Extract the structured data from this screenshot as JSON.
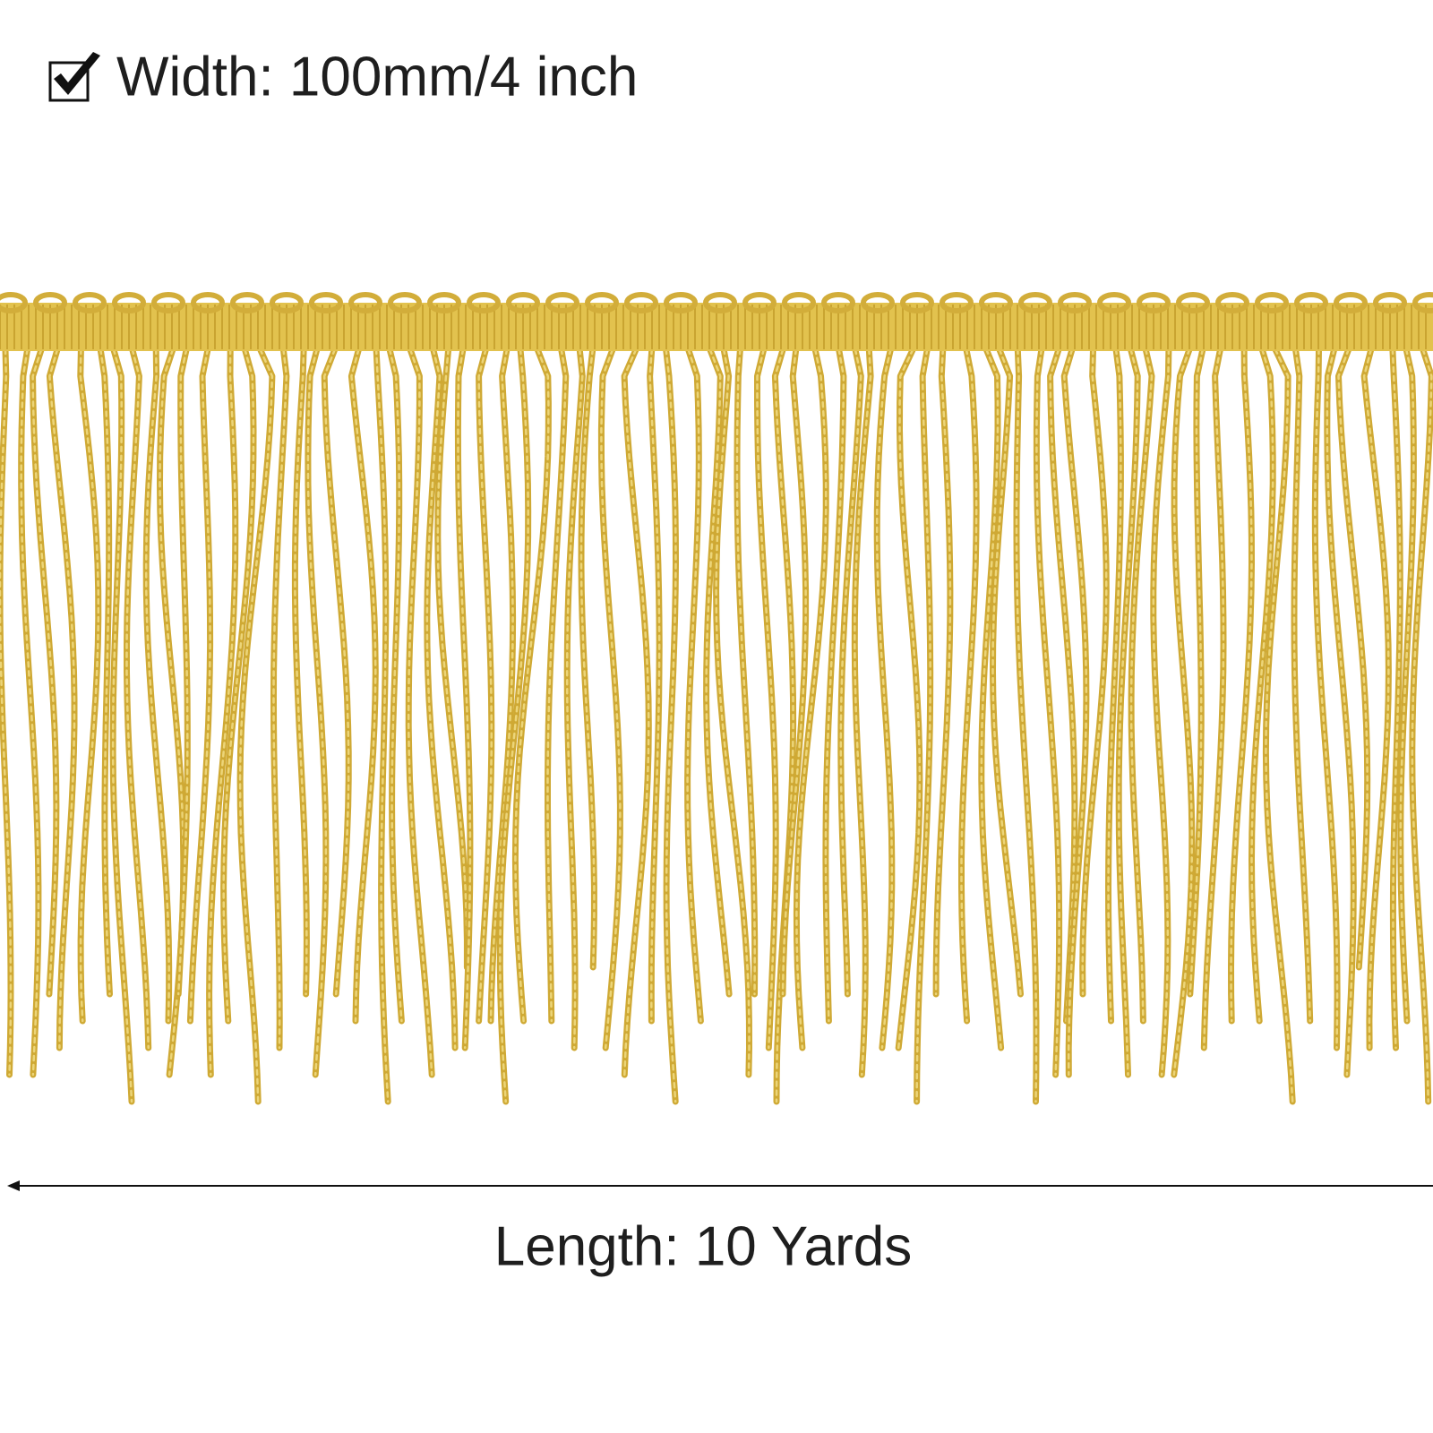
{
  "width_label": "Width: 100mm/4 inch",
  "length_label": "Length: 10 Yards"
}
